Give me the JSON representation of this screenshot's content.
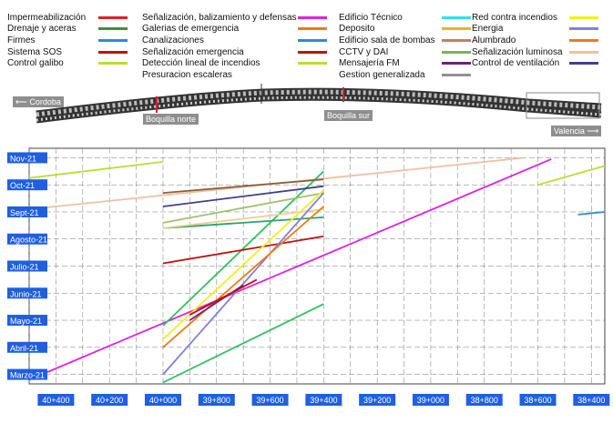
{
  "legend": [
    {
      "label": "Impermeabilización",
      "color": "#e02020"
    },
    {
      "label": "Drenaje y aceras",
      "color": "#4a8a38"
    },
    {
      "label": "Firmes",
      "color": "#2a8ae0"
    },
    {
      "label": "Sistema SOS",
      "color": "#c01010"
    },
    {
      "label": "Control galibo",
      "color": "#b8e030"
    },
    {
      "label": "Señalización, balizamiento y defensas",
      "color": "#e020e0"
    },
    {
      "label": "Galerias de emergencia",
      "color": "#f07a10"
    },
    {
      "label": "Canalizaciones",
      "color": "#2a8ae0"
    },
    {
      "label": "Señalización emergencia",
      "color": "#c01010"
    },
    {
      "label": "Detección lineal de incendios",
      "color": "#b8e030"
    },
    {
      "label": "Presuracion escaleras",
      "color": "#ffffff"
    },
    {
      "label": "Edificio Técnico",
      "color": "#ffffff"
    },
    {
      "label": "Deposito",
      "color": "#f0b020"
    },
    {
      "label": "Edificio sala de bombas",
      "color": "#ffffff"
    },
    {
      "label": "CCTV y DAI",
      "color": "#80b050"
    },
    {
      "label": "Mensajería FM",
      "color": "#702080"
    },
    {
      "label": "Gestion generalizada",
      "color": "#909090"
    },
    {
      "label": "Red contra incendios",
      "color": "#30e0f0"
    },
    {
      "label": "Energia",
      "color": "#c08060"
    },
    {
      "label": "Alumbrado",
      "color": "#2a8040"
    },
    {
      "label": "Señalización luminosa",
      "color": "#f0d090"
    },
    {
      "label": "Control de ventilación",
      "color": "#404090"
    },
    {
      "label": "",
      "color": "#f0f020"
    },
    {
      "label": "",
      "color": "#8080e0"
    },
    {
      "label": "",
      "color": "#f07a10"
    },
    {
      "label": "",
      "color": "#f0c0a0"
    },
    {
      "label": "",
      "color": "#30a080"
    }
  ],
  "road": {
    "left_label": "Cordoba",
    "right_label": "Valencia",
    "mouth_north": "Boquilla norte",
    "mouth_south": "Boquilla sur"
  },
  "chart_data": {
    "type": "line",
    "x_tick_labels": [
      "40+400",
      "40+200",
      "40+000",
      "39+800",
      "39+600",
      "39+400",
      "39+200",
      "39+000",
      "38+800",
      "38+600",
      "38+400"
    ],
    "y_tick_labels": [
      "Nov-21",
      "Oct-21",
      "Sept-21",
      "Agosto-21",
      "Julio-21",
      "Junio-21",
      "Mayo-21",
      "Abril-21",
      "Marzo-21"
    ],
    "xlim": [
      40500,
      38350
    ],
    "ylim_months": [
      2.65,
      11.35
    ],
    "series": [
      {
        "color": "#e020e0",
        "points": [
          [
            40500,
            2.8
          ],
          [
            38550,
            10.95
          ]
        ]
      },
      {
        "color": "#b8e030",
        "points": [
          [
            40500,
            10.25
          ],
          [
            40000,
            10.85
          ]
        ]
      },
      {
        "color": "#b8e030",
        "points": [
          [
            38600,
            10.0
          ],
          [
            38350,
            10.7
          ]
        ]
      },
      {
        "color": "#f0c0a0",
        "points": [
          [
            40500,
            9.1
          ],
          [
            38650,
            11.0
          ]
        ]
      },
      {
        "color": "#2a8ae0",
        "points": [
          [
            38450,
            8.9
          ],
          [
            38350,
            9.0
          ]
        ]
      },
      {
        "color": "#30c060",
        "points": [
          [
            40000,
            4.8
          ],
          [
            39400,
            10.5
          ]
        ]
      },
      {
        "color": "#2fa070",
        "points": [
          [
            40000,
            8.4
          ],
          [
            39400,
            8.8
          ]
        ]
      },
      {
        "color": "#a0c070",
        "points": [
          [
            40000,
            8.6
          ],
          [
            39400,
            9.7
          ]
        ]
      },
      {
        "color": "#8a6040",
        "points": [
          [
            40000,
            9.7
          ],
          [
            39400,
            10.2
          ]
        ]
      },
      {
        "color": "#404090",
        "points": [
          [
            40000,
            9.2
          ],
          [
            39400,
            9.95
          ]
        ]
      },
      {
        "color": "#c01010",
        "points": [
          [
            40000,
            7.1
          ],
          [
            39400,
            8.1
          ]
        ]
      },
      {
        "color": "#f0d090",
        "points": [
          [
            40000,
            8.4
          ],
          [
            39400,
            9.1
          ]
        ]
      },
      {
        "color": "#f0f020",
        "points": [
          [
            40000,
            4.3
          ],
          [
            39400,
            9.8
          ]
        ]
      },
      {
        "color": "#8080e0",
        "points": [
          [
            40000,
            3.0
          ],
          [
            39400,
            9.7
          ]
        ]
      },
      {
        "color": "#f07a10",
        "points": [
          [
            40000,
            4.0
          ],
          [
            39400,
            9.2
          ]
        ]
      },
      {
        "color": "#30c060",
        "points": [
          [
            40000,
            2.7
          ],
          [
            39400,
            5.6
          ]
        ]
      },
      {
        "color": "#702080",
        "points": [
          [
            39900,
            5.0
          ],
          [
            39700,
            6.3
          ]
        ]
      },
      {
        "color": "#c01010",
        "points": [
          [
            39900,
            5.2
          ],
          [
            39650,
            6.5
          ]
        ]
      }
    ]
  }
}
